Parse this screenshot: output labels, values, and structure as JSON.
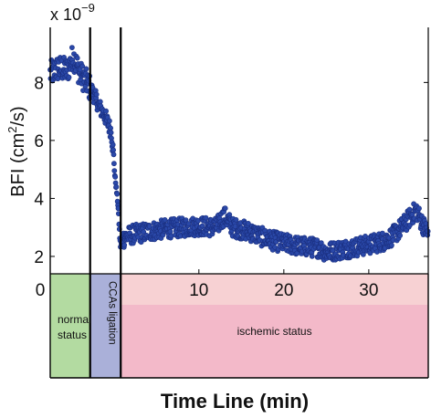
{
  "chart_data": {
    "type": "scatter",
    "title": "",
    "ylabel_parts": {
      "prefix": "BFI (cm",
      "sup": "2",
      "suffix": "/s)"
    },
    "xlabel": "Time Line (min)",
    "y_exponent": {
      "base": "x 10",
      "power": "−9"
    },
    "xlim": [
      -7.5,
      37
    ],
    "ylim": [
      1.4,
      9.9
    ],
    "y_ticks": [
      {
        "v": 8,
        "label": "8"
      },
      {
        "v": 6,
        "label": "6"
      },
      {
        "v": 4,
        "label": "4"
      },
      {
        "v": 2,
        "label": "2"
      }
    ],
    "x_ticks": [
      {
        "v": 10,
        "label": "10"
      },
      {
        "v": 20,
        "label": "20"
      },
      {
        "v": 30,
        "label": "30"
      }
    ],
    "x_origin_label": "0",
    "dividers": [
      -2.8,
      0.8
    ],
    "grid": false,
    "marker_color": "#2a48a8",
    "marker_edge": "#1a2f80",
    "series_anchors": [
      [
        -7.5,
        8.3
      ],
      [
        -6.5,
        8.5
      ],
      [
        -5.5,
        8.4
      ],
      [
        -4.8,
        8.9
      ],
      [
        -4.0,
        8.3
      ],
      [
        -3.2,
        8.0
      ],
      [
        -2.8,
        7.8
      ],
      [
        -2.4,
        7.6
      ],
      [
        -1.6,
        7.1
      ],
      [
        -1.0,
        6.8
      ],
      [
        -0.3,
        6.3
      ],
      [
        0.0,
        5.3
      ],
      [
        0.1,
        4.8
      ],
      [
        0.3,
        4.3
      ],
      [
        0.5,
        3.7
      ],
      [
        0.7,
        2.6
      ],
      [
        0.8,
        2.3
      ],
      [
        1.0,
        2.6
      ],
      [
        2,
        2.75
      ],
      [
        4,
        2.85
      ],
      [
        6,
        2.95
      ],
      [
        8,
        3.0
      ],
      [
        10,
        3.05
      ],
      [
        12,
        3.0
      ],
      [
        13,
        3.4
      ],
      [
        14,
        3.0
      ],
      [
        16,
        2.85
      ],
      [
        18,
        2.6
      ],
      [
        20,
        2.45
      ],
      [
        22,
        2.35
      ],
      [
        24,
        2.3
      ],
      [
        25,
        2.15
      ],
      [
        26,
        2.2
      ],
      [
        28,
        2.3
      ],
      [
        30,
        2.4
      ],
      [
        32,
        2.55
      ],
      [
        33,
        2.75
      ],
      [
        34,
        3.05
      ],
      [
        35,
        3.4
      ],
      [
        35.6,
        3.6
      ],
      [
        36.2,
        3.2
      ],
      [
        37,
        2.75
      ]
    ]
  },
  "phases": [
    {
      "label_lines": [
        "normal",
        "status"
      ],
      "color": "#b3dba1",
      "start": -7.5,
      "end": -2.8
    },
    {
      "label_lines": [
        "CCAs ligation"
      ],
      "color": "#aab0d9",
      "start": -2.8,
      "end": 0.8,
      "vertical": true
    },
    {
      "label_lines": [
        "ischemic status"
      ],
      "color": "#f3b9c9",
      "start": 0.8,
      "end": 37
    }
  ],
  "pink_upper_color": "#f7d1d3"
}
